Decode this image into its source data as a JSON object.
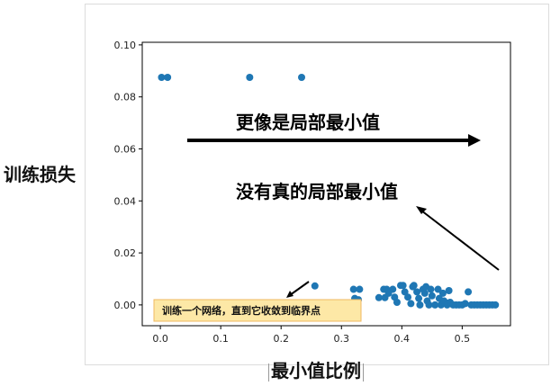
{
  "chart_data": {
    "type": "scatter",
    "xlabel": "最小值比例",
    "ylabel": "训练损失",
    "xlim": [
      -0.03,
      0.58
    ],
    "ylim": [
      -0.008,
      0.101
    ],
    "xticks": [
      "0.0",
      "0.1",
      "0.2",
      "0.3",
      "0.4",
      "0.5"
    ],
    "yticks": [
      "0.00",
      "0.02",
      "0.04",
      "0.06",
      "0.08",
      "0.10"
    ],
    "xtick_values": [
      0.0,
      0.1,
      0.2,
      0.3,
      0.4,
      0.5
    ],
    "ytick_values": [
      0.0,
      0.02,
      0.04,
      0.06,
      0.08,
      0.1
    ],
    "point_color": "#1f77b4",
    "points": [
      [
        0.002,
        0.0875
      ],
      [
        0.012,
        0.0875
      ],
      [
        0.148,
        0.0875
      ],
      [
        0.234,
        0.0875
      ],
      [
        0.256,
        0.0073
      ],
      [
        0.32,
        0.006
      ],
      [
        0.33,
        0.006
      ],
      [
        0.322,
        0.0025
      ],
      [
        0.328,
        0.002
      ],
      [
        0.362,
        0.0028
      ],
      [
        0.372,
        0.0028
      ],
      [
        0.37,
        0.006
      ],
      [
        0.375,
        0.006
      ],
      [
        0.385,
        0.006
      ],
      [
        0.378,
        0.0045
      ],
      [
        0.388,
        0.003
      ],
      [
        0.392,
        0.001
      ],
      [
        0.398,
        0.0075
      ],
      [
        0.402,
        0.0075
      ],
      [
        0.405,
        0.005
      ],
      [
        0.41,
        0.003
      ],
      [
        0.415,
        0.0005
      ],
      [
        0.418,
        0.007
      ],
      [
        0.42,
        0.0075
      ],
      [
        0.425,
        0.005
      ],
      [
        0.428,
        0.0025
      ],
      [
        0.43,
        0.0
      ],
      [
        0.435,
        0.006
      ],
      [
        0.438,
        0.0045
      ],
      [
        0.44,
        0.007
      ],
      [
        0.442,
        0.0015
      ],
      [
        0.445,
        0.0
      ],
      [
        0.448,
        0.006
      ],
      [
        0.45,
        0.0035
      ],
      [
        0.455,
        0.0
      ],
      [
        0.46,
        0.006
      ],
      [
        0.462,
        0.0025
      ],
      [
        0.465,
        0.0
      ],
      [
        0.468,
        0.0045
      ],
      [
        0.47,
        0.0015
      ],
      [
        0.475,
        0.0
      ],
      [
        0.478,
        0.0055
      ],
      [
        0.48,
        0.001
      ],
      [
        0.485,
        0.0
      ],
      [
        0.49,
        0.0
      ],
      [
        0.495,
        0.0
      ],
      [
        0.5,
        0.0
      ],
      [
        0.505,
        0.0005
      ],
      [
        0.51,
        0.005
      ],
      [
        0.515,
        0.0
      ],
      [
        0.52,
        0.0
      ],
      [
        0.525,
        0.0
      ],
      [
        0.53,
        0.0
      ],
      [
        0.535,
        0.0
      ],
      [
        0.54,
        0.0
      ],
      [
        0.545,
        0.0
      ],
      [
        0.55,
        0.0
      ],
      [
        0.555,
        0.0
      ]
    ],
    "annotations": {
      "more_like_local_min": "更像是局部最小值",
      "not_true_local_min": "没有真的局部最小值",
      "note_box": "训练一个网络，直到它收敛到临界点"
    },
    "note_box_fill": "#fde8a6",
    "note_box_border": "#f0b860"
  }
}
